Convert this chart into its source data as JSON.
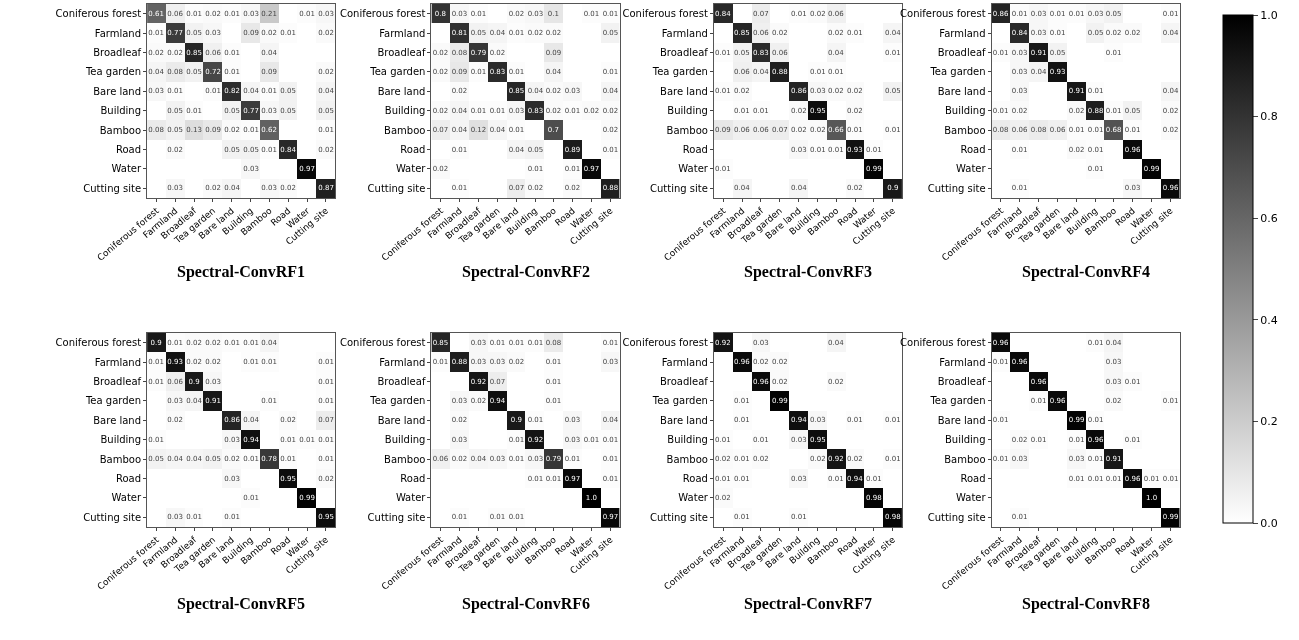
{
  "chart_data": [
    {
      "type": "heatmap",
      "title": "Spectral-ConvRF1",
      "data_labels": true,
      "clim": [
        0,
        1
      ],
      "cticks": [
        {
          "value": 0,
          "label": "0.0"
        },
        {
          "value": 0.2,
          "label": "0.2"
        },
        {
          "value": 0.4,
          "label": "0.4"
        },
        {
          "value": 0.6,
          "label": "0.6"
        },
        {
          "value": 0.8,
          "label": "0.8"
        },
        {
          "value": 1,
          "label": "1.0"
        }
      ],
      "categories": [
        "Coniferous forest",
        "Farmland",
        "Broadleaf",
        "Tea garden",
        "Bare land",
        "Building",
        "Bamboo",
        "Road",
        "Water",
        "Cutting site"
      ],
      "y_categories": [
        "Coniferous forest",
        "Farmland",
        "Broadleaf",
        "Tea garden",
        "Bare land",
        "Building",
        "Bamboo",
        "Road",
        "Water",
        "Cutting site"
      ],
      "cells": [
        [
          0.61,
          0.06,
          0.01,
          0.02,
          0.01,
          0.03,
          0.21,
          null,
          0.01,
          0.03
        ],
        [
          0.01,
          0.77,
          0.05,
          0.03,
          null,
          0.09,
          0.02,
          0.01,
          null,
          0.02
        ],
        [
          0.02,
          0.02,
          0.85,
          0.06,
          0.01,
          null,
          0.04,
          null,
          null,
          null
        ],
        [
          0.04,
          0.08,
          0.05,
          0.72,
          0.01,
          null,
          0.09,
          null,
          null,
          0.02
        ],
        [
          0.03,
          0.01,
          null,
          0.01,
          0.82,
          0.04,
          0.01,
          0.05,
          null,
          0.04
        ],
        [
          null,
          0.05,
          0.01,
          null,
          0.05,
          0.77,
          0.03,
          0.05,
          null,
          0.05
        ],
        [
          0.08,
          0.05,
          0.13,
          0.09,
          0.02,
          0.01,
          0.62,
          null,
          null,
          0.01
        ],
        [
          null,
          0.02,
          null,
          null,
          0.05,
          0.05,
          0.01,
          0.84,
          null,
          0.02
        ],
        [
          null,
          null,
          null,
          null,
          null,
          0.03,
          null,
          null,
          0.97,
          null
        ],
        [
          null,
          0.03,
          null,
          0.02,
          0.04,
          null,
          0.03,
          0.02,
          null,
          0.87
        ]
      ]
    },
    {
      "type": "heatmap",
      "title": "Spectral-ConvRF2",
      "data_labels": true,
      "categories": [
        "Coniferous forest",
        "Farmland",
        "Broadleaf",
        "Tea garden",
        "Bare land",
        "Building",
        "Bamboo",
        "Road",
        "Water",
        "Cutting site"
      ],
      "y_categories": [
        "Coniferous forest",
        "Farmland",
        "Broadleaf",
        "Tea garden",
        "Bare land",
        "Building",
        "Bamboo",
        "Road",
        "Water",
        "Cutting site"
      ],
      "cells": [
        [
          0.8,
          0.03,
          0.01,
          null,
          0.02,
          0.03,
          0.1,
          null,
          0.01,
          0.01
        ],
        [
          null,
          0.81,
          0.05,
          0.04,
          0.01,
          0.02,
          0.02,
          null,
          null,
          0.05
        ],
        [
          0.02,
          0.08,
          0.79,
          0.02,
          null,
          null,
          0.09,
          null,
          null,
          null
        ],
        [
          0.02,
          0.09,
          0.01,
          0.83,
          0.01,
          null,
          0.04,
          null,
          null,
          0.01
        ],
        [
          null,
          0.02,
          null,
          null,
          0.85,
          0.04,
          0.02,
          0.03,
          null,
          0.04
        ],
        [
          0.02,
          0.04,
          0.01,
          0.01,
          0.03,
          0.83,
          0.02,
          0.01,
          0.02,
          0.02
        ],
        [
          0.07,
          0.04,
          0.12,
          0.04,
          0.01,
          null,
          0.7,
          null,
          null,
          0.02
        ],
        [
          null,
          0.01,
          null,
          null,
          0.04,
          0.05,
          null,
          0.89,
          null,
          0.01
        ],
        [
          0.02,
          null,
          null,
          null,
          null,
          0.01,
          null,
          0.01,
          0.97,
          null
        ],
        [
          null,
          0.01,
          null,
          null,
          0.07,
          0.02,
          null,
          0.02,
          null,
          0.88
        ]
      ]
    },
    {
      "type": "heatmap",
      "title": "Spectral-ConvRF3",
      "data_labels": true,
      "categories": [
        "Coniferous forest",
        "Farmland",
        "Broadleaf",
        "Tea garden",
        "Bare land",
        "Building",
        "Bamboo",
        "Road",
        "Water",
        "Cutting site"
      ],
      "y_categories": [
        "Coniferous forest",
        "Farmland",
        "Broadleaf",
        "Tea garden",
        "Bare land",
        "Building",
        "Bamboo",
        "Road",
        "Water",
        "Cutting site"
      ],
      "cells": [
        [
          0.84,
          null,
          0.07,
          null,
          0.01,
          0.02,
          0.06,
          null,
          null,
          null
        ],
        [
          null,
          0.85,
          0.06,
          0.02,
          null,
          null,
          0.02,
          0.01,
          null,
          0.04
        ],
        [
          0.01,
          0.05,
          0.83,
          0.06,
          null,
          null,
          0.04,
          null,
          null,
          0.01
        ],
        [
          null,
          0.06,
          0.04,
          0.88,
          null,
          0.01,
          0.01,
          null,
          null,
          null
        ],
        [
          0.01,
          0.02,
          null,
          null,
          0.86,
          0.03,
          0.02,
          0.02,
          null,
          0.05
        ],
        [
          null,
          0.01,
          0.01,
          null,
          0.02,
          0.95,
          null,
          0.02,
          null,
          null
        ],
        [
          0.09,
          0.06,
          0.06,
          0.07,
          0.02,
          0.02,
          0.66,
          0.01,
          null,
          0.01
        ],
        [
          null,
          null,
          null,
          null,
          0.03,
          0.01,
          0.01,
          0.93,
          0.01,
          null
        ],
        [
          0.01,
          null,
          null,
          null,
          null,
          null,
          null,
          null,
          0.99,
          null
        ],
        [
          null,
          0.04,
          null,
          null,
          0.04,
          null,
          null,
          0.02,
          null,
          0.9
        ]
      ]
    },
    {
      "type": "heatmap",
      "title": "Spectral-ConvRF4",
      "data_labels": true,
      "categories": [
        "Coniferous forest",
        "Farmland",
        "Broadleaf",
        "Tea garden",
        "Bare land",
        "Building",
        "Bamboo",
        "Road",
        "Water",
        "Cutting site"
      ],
      "y_categories": [
        "Coniferous forest",
        "Farmland",
        "Broadleaf",
        "Tea garden",
        "Bare land",
        "Building",
        "Bamboo",
        "Road",
        "Water",
        "Cutting site"
      ],
      "cells": [
        [
          0.86,
          0.01,
          0.03,
          0.01,
          0.01,
          0.03,
          0.05,
          null,
          null,
          0.01
        ],
        [
          null,
          0.84,
          0.03,
          0.01,
          null,
          0.05,
          0.02,
          0.02,
          null,
          0.04
        ],
        [
          0.01,
          0.03,
          0.91,
          0.05,
          null,
          null,
          0.01,
          null,
          null,
          null
        ],
        [
          null,
          0.03,
          0.04,
          0.93,
          null,
          null,
          null,
          null,
          null,
          null
        ],
        [
          null,
          0.03,
          null,
          null,
          0.91,
          0.01,
          null,
          null,
          null,
          0.04
        ],
        [
          0.01,
          0.02,
          null,
          null,
          0.02,
          0.88,
          0.01,
          0.05,
          null,
          0.02
        ],
        [
          0.08,
          0.06,
          0.08,
          0.06,
          0.01,
          0.01,
          0.68,
          0.01,
          null,
          0.02
        ],
        [
          null,
          0.01,
          null,
          null,
          0.02,
          0.01,
          null,
          0.96,
          null,
          null
        ],
        [
          null,
          null,
          null,
          null,
          null,
          0.01,
          null,
          null,
          0.99,
          null
        ],
        [
          null,
          0.01,
          null,
          null,
          null,
          null,
          null,
          0.03,
          null,
          0.96
        ]
      ]
    },
    {
      "type": "heatmap",
      "title": "Spectral-ConvRF5",
      "data_labels": true,
      "categories": [
        "Coniferous forest",
        "Farmland",
        "Broadleaf",
        "Tea garden",
        "Bare land",
        "Building",
        "Bamboo",
        "Road",
        "Water",
        "Cutting site"
      ],
      "y_categories": [
        "Coniferous forest",
        "Farmland",
        "Broadleaf",
        "Tea garden",
        "Bare land",
        "Building",
        "Bamboo",
        "Road",
        "Water",
        "Cutting site"
      ],
      "cells": [
        [
          0.9,
          0.01,
          0.02,
          0.02,
          0.01,
          0.01,
          0.04,
          null,
          null,
          null
        ],
        [
          0.01,
          0.93,
          0.02,
          0.02,
          null,
          0.01,
          0.01,
          null,
          null,
          0.01
        ],
        [
          0.01,
          0.06,
          0.9,
          0.03,
          null,
          null,
          null,
          null,
          null,
          0.01
        ],
        [
          null,
          0.03,
          0.04,
          0.91,
          null,
          null,
          0.01,
          null,
          null,
          0.01
        ],
        [
          null,
          0.02,
          null,
          null,
          0.86,
          0.04,
          null,
          0.02,
          null,
          0.07
        ],
        [
          0.01,
          null,
          null,
          null,
          0.03,
          0.94,
          null,
          0.01,
          0.01,
          0.01
        ],
        [
          0.05,
          0.04,
          0.04,
          0.05,
          0.02,
          0.01,
          0.78,
          0.01,
          null,
          0.01
        ],
        [
          null,
          null,
          null,
          null,
          0.03,
          null,
          null,
          0.95,
          null,
          0.02
        ],
        [
          null,
          null,
          null,
          null,
          null,
          0.01,
          null,
          null,
          0.99,
          null
        ],
        [
          null,
          0.03,
          0.01,
          null,
          0.01,
          null,
          null,
          null,
          null,
          0.95
        ]
      ]
    },
    {
      "type": "heatmap",
      "title": "Spectral-ConvRF6",
      "data_labels": true,
      "cell_labels": [
        [
          "0.85",
          null,
          "0.03",
          "0.01",
          "0.01",
          "0.01",
          "0.08",
          null,
          null,
          "0.01"
        ],
        [
          "0.01",
          "0.88",
          "0.03",
          "0.03",
          "0.02",
          null,
          "0.01",
          null,
          null,
          "0.03"
        ],
        [
          null,
          null,
          "0.92",
          "0.07",
          null,
          null,
          "0.01",
          null,
          null,
          null
        ],
        [
          null,
          "0.03",
          "0.02",
          "0.94",
          null,
          null,
          "0.01",
          null,
          null,
          null
        ],
        [
          null,
          "0.02",
          null,
          null,
          "0.9",
          "0.01",
          null,
          "0.03",
          null,
          "0.04"
        ],
        [
          null,
          "0.03",
          null,
          null,
          "0.01",
          "0.92",
          null,
          "0.03",
          "0.01",
          "0.01"
        ],
        [
          "0.06",
          "0.02",
          "0.04",
          "0.03",
          "0.01",
          "0.03",
          "0.79",
          "0.01",
          null,
          "0.01"
        ],
        [
          null,
          null,
          null,
          null,
          null,
          "0.01",
          "0.01",
          "0.97",
          null,
          "0.01"
        ],
        [
          null,
          null,
          null,
          null,
          null,
          null,
          null,
          null,
          "1.0",
          null
        ],
        [
          null,
          "0.01",
          null,
          "0.01",
          "0.01",
          null,
          null,
          null,
          null,
          "0.97"
        ]
      ],
      "categories": [
        "Coniferous forest",
        "Farmland",
        "Broadleaf",
        "Tea garden",
        "Bare land",
        "Building",
        "Bamboo",
        "Road",
        "Water",
        "Cutting site"
      ],
      "y_categories": [
        "Coniferous forest",
        "Farmland",
        "Broadleaf",
        "Tea garden",
        "Bare land",
        "Building",
        "Bamboo",
        "Road",
        "Water",
        "Cutting site"
      ],
      "cells": [
        [
          0.85,
          null,
          0.03,
          0.01,
          0.01,
          0.01,
          0.08,
          null,
          null,
          0.01
        ],
        [
          0.01,
          0.88,
          0.03,
          0.03,
          0.02,
          null,
          0.01,
          null,
          null,
          0.03
        ],
        [
          null,
          null,
          0.92,
          0.07,
          null,
          null,
          0.01,
          null,
          null,
          null
        ],
        [
          null,
          0.03,
          0.02,
          0.94,
          null,
          null,
          0.01,
          null,
          null,
          null
        ],
        [
          null,
          0.02,
          null,
          null,
          0.9,
          0.01,
          null,
          0.03,
          null,
          0.04
        ],
        [
          null,
          0.03,
          null,
          null,
          0.01,
          0.92,
          null,
          0.03,
          0.01,
          0.01
        ],
        [
          0.06,
          0.02,
          0.04,
          0.03,
          0.01,
          0.03,
          0.79,
          0.01,
          null,
          0.01
        ],
        [
          null,
          null,
          null,
          null,
          null,
          0.01,
          0.01,
          0.97,
          null,
          0.01
        ],
        [
          null,
          null,
          null,
          null,
          null,
          null,
          null,
          null,
          1.0,
          null
        ],
        [
          null,
          0.01,
          null,
          0.01,
          0.01,
          null,
          null,
          null,
          null,
          0.97
        ]
      ]
    },
    {
      "type": "heatmap",
      "title": "Spectral-ConvRF7",
      "data_labels": true,
      "categories": [
        "Coniferous forest",
        "Farmland",
        "Broadleaf",
        "Tea garden",
        "Bare land",
        "Building",
        "Bamboo",
        "Road",
        "Water",
        "Cutting site"
      ],
      "y_categories": [
        "Coniferous forest",
        "Farmland",
        "Broadleaf",
        "Tea garden",
        "Bare land",
        "Building",
        "Bamboo",
        "Road",
        "Water",
        "Cutting site"
      ],
      "cells": [
        [
          0.92,
          null,
          0.03,
          null,
          null,
          null,
          0.04,
          null,
          null,
          null
        ],
        [
          null,
          0.96,
          0.02,
          0.02,
          null,
          null,
          null,
          null,
          null,
          null
        ],
        [
          null,
          null,
          0.96,
          0.02,
          null,
          null,
          0.02,
          null,
          null,
          null
        ],
        [
          null,
          0.01,
          null,
          0.99,
          null,
          null,
          null,
          null,
          null,
          null
        ],
        [
          null,
          0.01,
          null,
          null,
          0.94,
          0.03,
          null,
          0.01,
          null,
          0.01
        ],
        [
          0.01,
          null,
          0.01,
          null,
          0.03,
          0.95,
          null,
          null,
          null,
          null
        ],
        [
          0.02,
          0.01,
          0.02,
          null,
          null,
          0.02,
          0.92,
          0.02,
          null,
          0.01
        ],
        [
          0.01,
          0.01,
          null,
          null,
          0.03,
          null,
          0.01,
          0.94,
          0.01,
          null
        ],
        [
          0.02,
          null,
          null,
          null,
          null,
          null,
          null,
          null,
          0.98,
          null
        ],
        [
          null,
          0.01,
          null,
          null,
          0.01,
          null,
          null,
          null,
          null,
          0.98
        ]
      ]
    },
    {
      "type": "heatmap",
      "title": "Spectral-ConvRF8",
      "data_labels": true,
      "cell_labels": [
        [
          "0.96",
          null,
          null,
          null,
          null,
          "0.01",
          "0.04",
          null,
          null,
          null
        ],
        [
          "0.01",
          "0.96",
          null,
          null,
          null,
          null,
          "0.03",
          null,
          null,
          null
        ],
        [
          null,
          null,
          "0.96",
          null,
          null,
          null,
          "0.03",
          "0.01",
          null,
          null
        ],
        [
          null,
          null,
          "0.01",
          "0.96",
          null,
          null,
          "0.02",
          null,
          null,
          "0.01"
        ],
        [
          "0.01",
          null,
          null,
          null,
          "0.99",
          "0.01",
          null,
          null,
          null,
          null
        ],
        [
          null,
          "0.02",
          "0.01",
          null,
          "0.01",
          "0.96",
          null,
          "0.01",
          null,
          null
        ],
        [
          "0.01",
          "0.03",
          null,
          null,
          "0.03",
          "0.01",
          "0.91",
          null,
          null,
          null
        ],
        [
          null,
          null,
          null,
          null,
          "0.01",
          "0.01",
          "0.01",
          "0.96",
          "0.01",
          "0.01"
        ],
        [
          null,
          null,
          null,
          null,
          null,
          null,
          null,
          null,
          "1.0",
          null
        ],
        [
          null,
          "0.01",
          null,
          null,
          null,
          null,
          null,
          null,
          null,
          "0.99"
        ]
      ],
      "categories": [
        "Coniferous forest",
        "Farmland",
        "Broadleaf",
        "Tea garden",
        "Bare land",
        "Building",
        "Bamboo",
        "Road",
        "Water",
        "Cutting site"
      ],
      "y_categories": [
        "Coniferous forest",
        "Farmland",
        "Broadleaf",
        "Tea garden",
        "Bare land",
        "Building",
        "Bamboo",
        "Road",
        "Water",
        "Cutting site"
      ],
      "cells": [
        [
          0.96,
          null,
          null,
          null,
          null,
          0.01,
          0.04,
          null,
          null,
          null
        ],
        [
          0.01,
          0.96,
          null,
          null,
          null,
          null,
          0.03,
          null,
          null,
          null
        ],
        [
          null,
          null,
          0.96,
          null,
          null,
          null,
          0.03,
          0.01,
          null,
          null
        ],
        [
          null,
          null,
          0.01,
          0.96,
          null,
          null,
          0.02,
          null,
          null,
          0.01
        ],
        [
          0.01,
          null,
          null,
          null,
          0.99,
          0.01,
          null,
          null,
          null,
          null
        ],
        [
          null,
          0.02,
          0.01,
          null,
          0.01,
          0.96,
          null,
          0.01,
          null,
          null
        ],
        [
          0.01,
          0.03,
          null,
          null,
          0.03,
          0.01,
          0.91,
          null,
          null,
          null
        ],
        [
          null,
          null,
          null,
          null,
          0.01,
          0.01,
          0.01,
          0.96,
          0.01,
          0.01
        ],
        [
          null,
          null,
          null,
          null,
          null,
          null,
          null,
          null,
          1.0,
          null
        ],
        [
          null,
          0.01,
          null,
          null,
          null,
          null,
          null,
          null,
          null,
          0.99
        ]
      ]
    }
  ]
}
